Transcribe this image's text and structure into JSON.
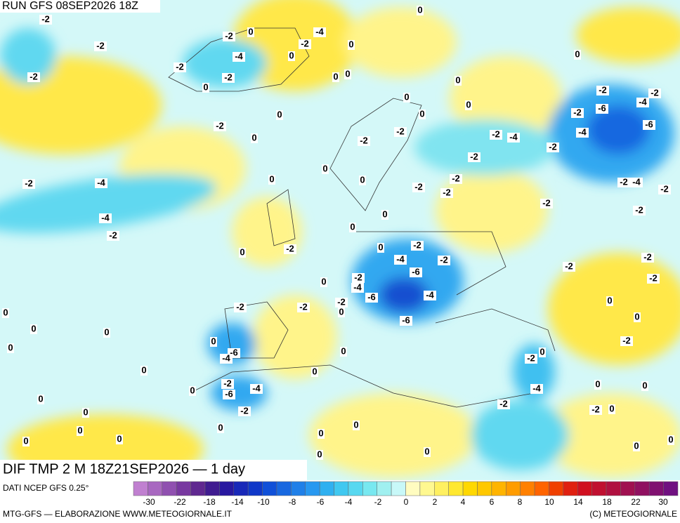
{
  "header": {
    "run": "RUN GFS 08SEP2026 18Z"
  },
  "map": {
    "title": "DIF TMP 2 M 18Z21SEP2026 — 1 day",
    "contour_labels": [
      -2,
      -2,
      0,
      -4,
      -2,
      -2,
      0,
      -2,
      -4,
      0,
      0,
      0,
      -2,
      -2,
      0,
      0,
      0,
      0,
      0,
      0,
      0,
      -2,
      -2,
      -4,
      -2,
      -6,
      -6,
      -4,
      0,
      -2,
      0,
      -2,
      -2,
      -2,
      -4,
      -2,
      -2,
      0,
      0,
      -2,
      -4,
      -2,
      -2,
      -2,
      -2,
      -4,
      -2,
      0,
      -2,
      -2,
      0,
      -4,
      -2,
      0,
      0,
      -2,
      0,
      -2,
      -4,
      -2,
      -6,
      -2,
      -2,
      -2,
      -2,
      0,
      -4,
      -6,
      -4,
      0,
      -2,
      -2,
      -2,
      0,
      0,
      -6,
      0,
      0,
      0,
      0,
      0,
      -6,
      -4,
      0,
      -2,
      0,
      -2,
      0,
      0,
      -2,
      -4,
      -6,
      -4,
      0,
      0,
      0,
      0,
      -2,
      -2,
      -2,
      0,
      0,
      0,
      0,
      0,
      0,
      0,
      0,
      0,
      0,
      0,
      0
    ]
  },
  "legend": {
    "source": "DATI NCEP GFS 0.25°",
    "colors": [
      "#c080d0",
      "#a868c0",
      "#9050b0",
      "#7838a0",
      "#602890",
      "#401c90",
      "#2818a0",
      "#1828b8",
      "#1038c8",
      "#1050d8",
      "#1868e0",
      "#2080e8",
      "#2898f0",
      "#30b0f0",
      "#40c8f0",
      "#58d8f0",
      "#78e8f0",
      "#a0f0f0",
      "#c8f8f8",
      "#fffcc0",
      "#fff890",
      "#fff060",
      "#ffe830",
      "#ffd800",
      "#ffc800",
      "#ffb400",
      "#ff9c00",
      "#ff8000",
      "#ff6400",
      "#f04000",
      "#e02010",
      "#d01020",
      "#c01030",
      "#b01040",
      "#a01050",
      "#901060",
      "#801070",
      "#701080"
    ],
    "labels": [
      -30,
      -22,
      -18,
      -14,
      -10,
      -8,
      -6,
      -4,
      -2,
      0,
      2,
      4,
      6,
      8,
      10,
      14,
      18,
      22,
      30
    ]
  },
  "footer": {
    "left": "MTG-GFS — ELABORAZIONE WWW.METEOGIORNALE.IT",
    "right": "(C) METEOGIORNALE"
  }
}
